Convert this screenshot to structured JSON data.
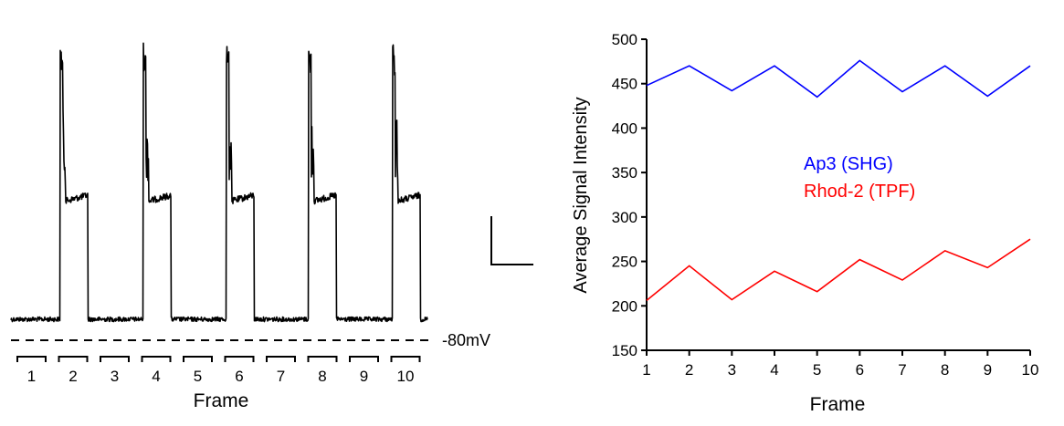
{
  "chart_data": [
    {
      "type": "line",
      "panel": "voltage-trace",
      "baseline_label": "-80mV",
      "xlabel": "Frame",
      "frames": [
        "1",
        "2",
        "3",
        "4",
        "5",
        "6",
        "7",
        "8",
        "9",
        "10"
      ],
      "depolarized_frames": [
        2,
        4,
        6,
        8,
        10
      ],
      "scale_bar": true
    },
    {
      "type": "line",
      "panel": "signal-intensity",
      "xlabel": "Frame",
      "ylabel": "Average Signal Intensity",
      "xlim": [
        1,
        10
      ],
      "ylim": [
        150,
        500
      ],
      "xticks": [
        1,
        2,
        3,
        4,
        5,
        6,
        7,
        8,
        9,
        10
      ],
      "yticks": [
        150,
        200,
        250,
        300,
        350,
        400,
        450,
        500
      ],
      "x": [
        1,
        2,
        3,
        4,
        5,
        6,
        7,
        8,
        9,
        10
      ],
      "series": [
        {
          "name": "Ap3 (SHG)",
          "color": "#0000ff",
          "values": [
            448,
            470,
            442,
            470,
            435,
            476,
            441,
            470,
            436,
            470
          ]
        },
        {
          "name": "Rhod-2 (TPF)",
          "color": "#ff0000",
          "values": [
            206,
            245,
            207,
            239,
            216,
            252,
            229,
            262,
            243,
            275
          ]
        }
      ],
      "legend_position": "center"
    }
  ]
}
